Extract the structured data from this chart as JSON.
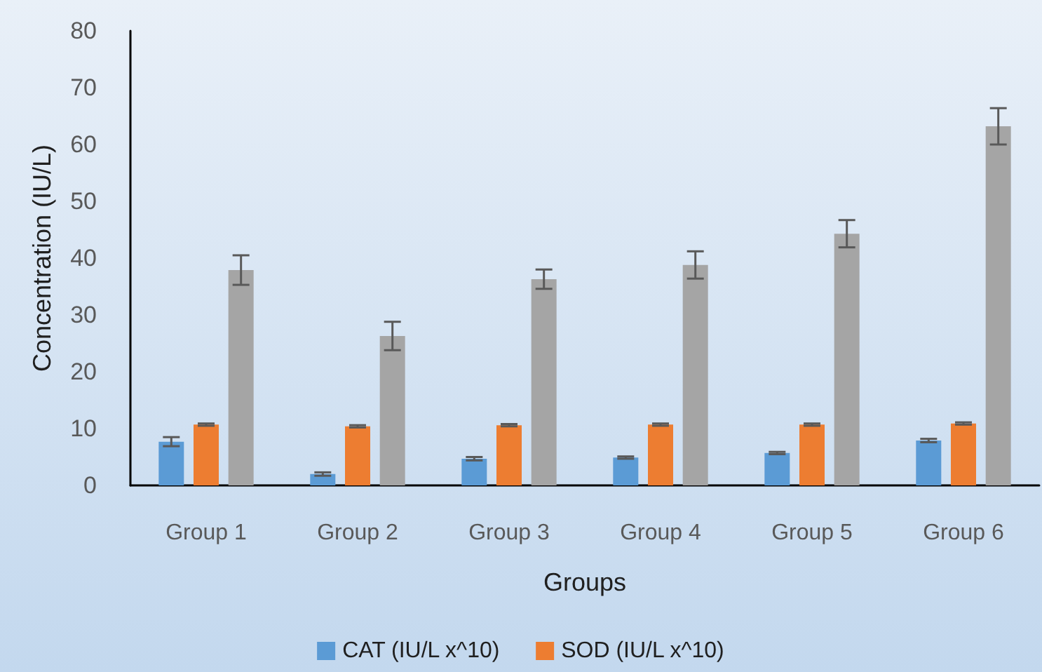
{
  "chart_data": {
    "type": "bar",
    "xlabel": "Groups",
    "ylabel": "Concentration (IU/L)",
    "categories": [
      "Group 1",
      "Group 2",
      "Group 3",
      "Group 4",
      "Group 5",
      "Group 6"
    ],
    "series": [
      {
        "name": "CAT (IU/L x^10)",
        "color": "#5b9bd5",
        "values": [
          7.7,
          2.0,
          4.7,
          4.9,
          5.7,
          7.9
        ],
        "errors": [
          0.8,
          0.3,
          0.3,
          0.2,
          0.2,
          0.3
        ]
      },
      {
        "name": "SOD (IU/L x^10)",
        "color": "#ed7d31",
        "values": [
          10.7,
          10.4,
          10.6,
          10.7,
          10.7,
          10.9
        ],
        "errors": [
          0.2,
          0.2,
          0.2,
          0.2,
          0.2,
          0.2
        ]
      },
      {
        "color": "#a5a5a5",
        "values": [
          37.9,
          26.3,
          36.3,
          38.8,
          44.3,
          63.2
        ],
        "errors": [
          2.6,
          2.5,
          1.7,
          2.4,
          2.4,
          3.2
        ]
      }
    ],
    "ylim": [
      0,
      80
    ],
    "yticks": [
      0,
      10,
      20,
      30,
      40,
      50,
      60,
      70,
      80
    ],
    "grid": false,
    "legend": "bottom"
  }
}
